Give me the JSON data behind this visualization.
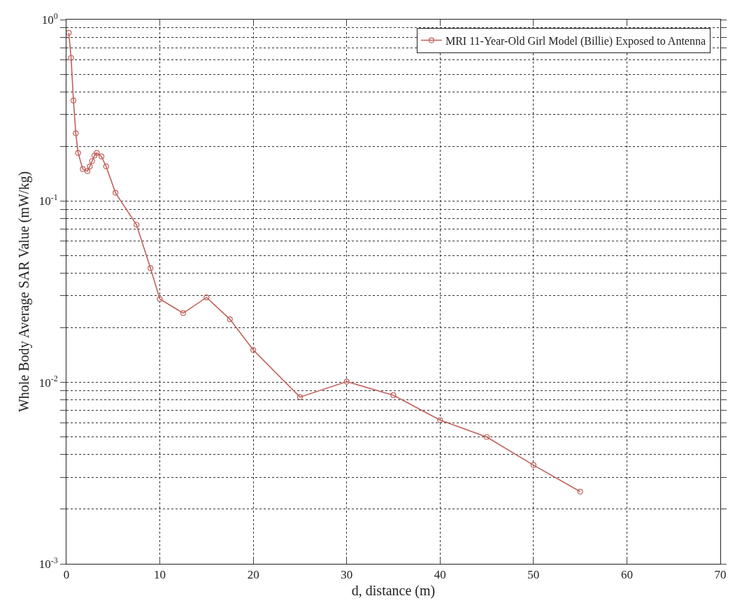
{
  "chart_data": {
    "type": "line",
    "xlabel": "d, distance (m)",
    "ylabel": "Whole Body Average SAR Value (mW/kg)",
    "x": [
      0.25,
      0.5,
      0.75,
      1,
      1.25,
      1.75,
      2.25,
      2.5,
      2.75,
      3,
      3.25,
      3.75,
      4.25,
      5.25,
      7.5,
      9,
      10,
      12.5,
      15,
      17.5,
      20,
      25,
      30,
      35,
      40,
      45,
      50,
      55
    ],
    "series": [
      {
        "name": "MRI 11-Year-Old Girl Model (Billie) Exposed to Antenna",
        "color": "#c0605a",
        "values": [
          0.845,
          0.615,
          0.358,
          0.236,
          0.184,
          0.15,
          0.146,
          0.155,
          0.166,
          0.178,
          0.184,
          0.176,
          0.155,
          0.111,
          0.074,
          0.0426,
          0.0288,
          0.0241,
          0.0294,
          0.0223,
          0.0151,
          0.0083,
          0.0101,
          0.0085,
          0.0062,
          0.005,
          0.0035,
          0.0025
        ]
      }
    ],
    "xlim": [
      0,
      70
    ],
    "xticks": [
      0,
      10,
      20,
      30,
      40,
      50,
      60,
      70
    ],
    "ylim": [
      0.001,
      1
    ],
    "yticks": [
      {
        "value": 0.001,
        "label": "10$^{-3}$"
      },
      {
        "value": 0.002,
        "label": null
      },
      {
        "value": 0.003,
        "label": null
      },
      {
        "value": 0.004,
        "label": null
      },
      {
        "value": 0.005,
        "label": null
      },
      {
        "value": 0.006,
        "label": null
      },
      {
        "value": 0.007,
        "label": null
      },
      {
        "value": 0.008,
        "label": null
      },
      {
        "value": 0.009,
        "label": null
      },
      {
        "value": 0.01,
        "label": "10$^{-2}$"
      },
      {
        "value": 0.02,
        "label": null
      },
      {
        "value": 0.03,
        "label": null
      },
      {
        "value": 0.04,
        "label": null
      },
      {
        "value": 0.05,
        "label": null
      },
      {
        "value": 0.06,
        "label": null
      },
      {
        "value": 0.07,
        "label": null
      },
      {
        "value": 0.08,
        "label": null
      },
      {
        "value": 0.09,
        "label": null
      },
      {
        "value": 0.1,
        "label": "10$^{-1}$"
      },
      {
        "value": 0.2,
        "label": null
      },
      {
        "value": 0.3,
        "label": null
      },
      {
        "value": 0.4,
        "label": null
      },
      {
        "value": 0.5,
        "label": null
      },
      {
        "value": 0.6,
        "label": null
      },
      {
        "value": 0.7,
        "label": null
      },
      {
        "value": 0.8,
        "label": null
      },
      {
        "value": 0.9,
        "label": null
      },
      {
        "value": 1,
        "label": "10$^{0}$"
      }
    ],
    "log": "y",
    "grid": true,
    "legend": "top right",
    "marker": "circle",
    "line_style": "solid"
  }
}
